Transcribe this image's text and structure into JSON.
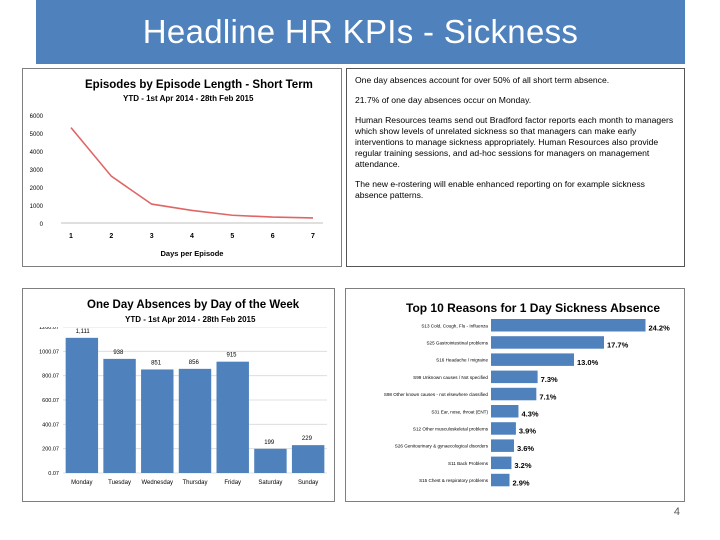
{
  "slide": {
    "title": "Headline HR KPIs - Sickness",
    "page_number": "4",
    "accent_color": "#4f81bd"
  },
  "notes": [
    "One day absences account for over 50% of all short term absence.",
    "21.7% of one day absences occur on Monday.",
    "Human Resources teams send out Bradford  factor reports each month to managers which show levels of unrelated sickness so that managers can make early interventions to manage sickness appropriately.  Human Resources also provide regular training sessions, and ad-hoc sessions for managers on management attendance.",
    "The new e-rostering will enable enhanced reporting on for example sickness absence patterns."
  ],
  "chart_data": [
    {
      "type": "line",
      "title": "Episodes by Episode Length - Short Term",
      "subtitle": "YTD - 1st Apr 2014 - 28th Feb 2015",
      "xlabel": "Days per Episode",
      "ylabel": "",
      "x": [
        1,
        2,
        3,
        4,
        5,
        6,
        7
      ],
      "values": [
        5300,
        2600,
        1050,
        700,
        430,
        330,
        280
      ],
      "y_ticks": [
        "0",
        "1000",
        "2000",
        "3000",
        "4000",
        "5000",
        "6000"
      ],
      "ylim": [
        0,
        6000
      ],
      "grid": false,
      "color": "#e06666"
    },
    {
      "type": "bar",
      "title": "One Day Absences by Day of the Week",
      "subtitle": "YTD - 1st Apr 2014 - 28th Feb 2015",
      "categories": [
        "Monday",
        "Tuesday",
        "Wednesday",
        "Thursday",
        "Friday",
        "Saturday",
        "Sunday"
      ],
      "values": [
        1111,
        938,
        851,
        856,
        915,
        199,
        229
      ],
      "data_labels": [
        "1,111",
        "938",
        "851",
        "856",
        "915",
        "199",
        "229"
      ],
      "y_ticks": [
        "0.07",
        "200.07",
        "400.07",
        "600.07",
        "800.07",
        "1000.07",
        "1200.07"
      ],
      "ylim": [
        0,
        1200
      ],
      "grid": true,
      "color": "#4f81bd"
    },
    {
      "type": "bar",
      "orientation": "horizontal",
      "title": "Top 10 Reasons for 1 Day Sickness Absence",
      "categories": [
        "S13 Cold, Cough, Flu - Influenza",
        "S25 Gastrointestinal problems",
        "S16 Headache / migraine",
        "S99 Unknown causes / Not specified",
        "S98 Other known causes - not elsewhere classified",
        "S31 Ear, nose, throat (ENT)",
        "S12 Other musculoskeletal problems",
        "S26 Genitourinary & gynaecological disorders",
        "S11 Back Problems",
        "S15 Chest & respiratory problems"
      ],
      "values": [
        24.2,
        17.7,
        13.0,
        7.3,
        7.1,
        4.3,
        3.9,
        3.6,
        3.2,
        2.9
      ],
      "data_labels": [
        "24.2%",
        "17.7%",
        "13.0%",
        "7.3%",
        "7.1%",
        "4.3%",
        "3.9%",
        "3.6%",
        "3.2%",
        "2.9%"
      ],
      "xlim": [
        0,
        26
      ],
      "grid": false,
      "color": "#4f81bd"
    }
  ]
}
